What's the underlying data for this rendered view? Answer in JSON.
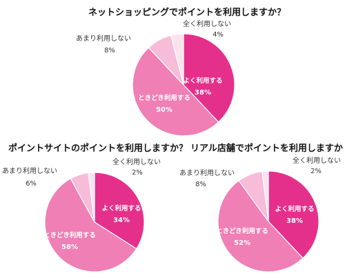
{
  "colors": {
    "yoku": "#e4308a",
    "tokidoki": "#ef7fb5",
    "amari": "#f6bcd8",
    "mattaku": "#fae3ef",
    "stroke": "#ffffff"
  },
  "chart_data": [
    {
      "type": "pie",
      "title": "ネットショッピングでポイントを利用しますか？",
      "slices": [
        {
          "label": "よく利用する",
          "value": 38,
          "display": "38%",
          "color": "#e4308a",
          "label_position": "inside"
        },
        {
          "label": "ときどき利用する",
          "value": 50,
          "display": "50%",
          "color": "#ef7fb5",
          "label_position": "inside"
        },
        {
          "label": "あまり利用しない",
          "value": 8,
          "display": "8%",
          "color": "#f6bcd8",
          "label_position": "outside"
        },
        {
          "label": "全く利用しない",
          "value": 4,
          "display": "4%",
          "color": "#fae3ef",
          "label_position": "outside"
        }
      ]
    },
    {
      "type": "pie",
      "title": "ポイントサイトのポイントを利用しますか？",
      "slices": [
        {
          "label": "よく利用する",
          "value": 34,
          "display": "34%",
          "color": "#e4308a",
          "label_position": "inside"
        },
        {
          "label": "ときどき利用する",
          "value": 58,
          "display": "58%",
          "color": "#ef7fb5",
          "label_position": "inside"
        },
        {
          "label": "あまり利用しない",
          "value": 6,
          "display": "6%",
          "color": "#f6bcd8",
          "label_position": "outside"
        },
        {
          "label": "全く利用しない",
          "value": 2,
          "display": "2%",
          "color": "#fae3ef",
          "label_position": "outside"
        }
      ]
    },
    {
      "type": "pie",
      "title": "リアル店舗でポイントを利用しますか",
      "slices": [
        {
          "label": "よく利用する",
          "value": 38,
          "display": "38%",
          "color": "#e4308a",
          "label_position": "inside"
        },
        {
          "label": "ときどき利用する",
          "value": 52,
          "display": "52%",
          "color": "#ef7fb5",
          "label_position": "inside"
        },
        {
          "label": "あまり利用しない",
          "value": 8,
          "display": "8%",
          "color": "#f6bcd8",
          "label_position": "outside"
        },
        {
          "label": "全く利用しない",
          "value": 2,
          "display": "2%",
          "color": "#fae3ef",
          "label_position": "outside"
        }
      ]
    }
  ]
}
